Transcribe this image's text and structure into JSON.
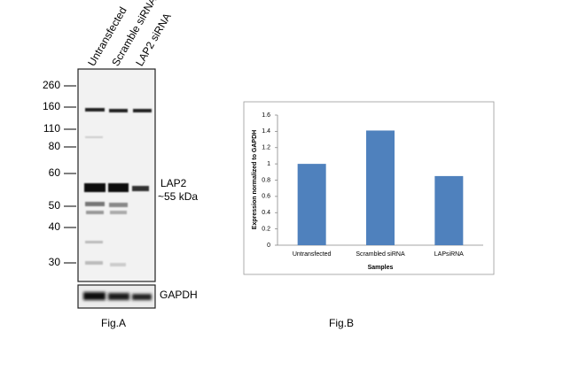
{
  "blot": {
    "lanes": [
      "Untransfected",
      "Scramble siRNA",
      "LAP2 siRNA"
    ],
    "markers": [
      "260",
      "160",
      "110",
      "80",
      "60",
      "50",
      "40",
      "30"
    ],
    "band_label": "LAP2",
    "band_size": "~55 kDa",
    "control_label": "GAPDH",
    "caption": "Fig.A"
  },
  "chart_data": {
    "type": "bar",
    "caption": "Fig.B",
    "x_label": "Samples",
    "y_label": "Expression normalized to GAPDH",
    "categories": [
      "Untransfected",
      "Scrambled siRNA",
      "LAPsiRNA"
    ],
    "values": [
      1.0,
      1.41,
      0.85
    ],
    "color": "#4f81bd",
    "ylim": [
      0,
      1.6
    ],
    "yticks": [
      0,
      0.2,
      0.4,
      0.6,
      0.8,
      1,
      1.2,
      1.4,
      1.6
    ],
    "grid": false
  }
}
